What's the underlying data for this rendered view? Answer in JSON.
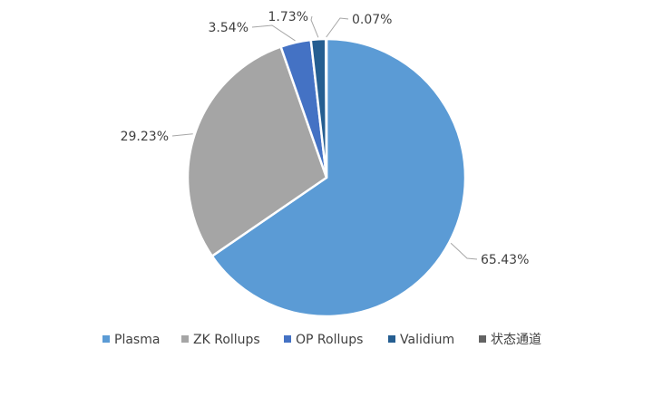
{
  "chart_data": {
    "type": "pie",
    "title": "",
    "legend_position": "bottom",
    "slices": [
      {
        "label": "Plasma",
        "value": 65.43,
        "display": "65.43%",
        "color": "#5B9BD5"
      },
      {
        "label": "ZK Rollups",
        "value": 29.23,
        "display": "29.23%",
        "color": "#A5A5A5"
      },
      {
        "label": "OP Rollups",
        "value": 3.54,
        "display": "3.54%",
        "color": "#4472C4"
      },
      {
        "label": "Validium",
        "value": 1.73,
        "display": "1.73%",
        "color": "#255E91"
      },
      {
        "label": "状态通道",
        "value": 0.07,
        "display": "0.07%",
        "color": "#636363"
      }
    ]
  }
}
